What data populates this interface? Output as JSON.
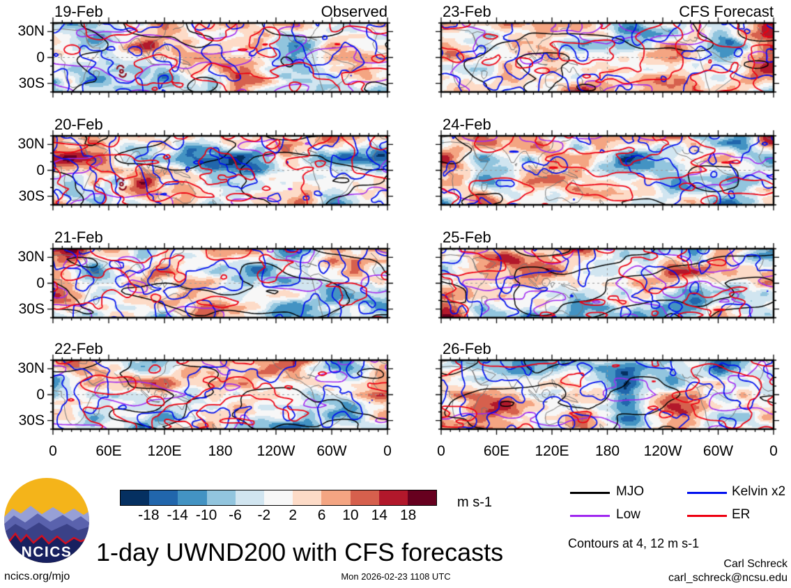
{
  "meta": {
    "site": "ncics.org/mjo",
    "timestamp": "Mon 2026-02-23 1108 UTC",
    "author": "Carl Schreck",
    "email": "carl_schreck@ncsu.edu",
    "logo_text": "NCICS"
  },
  "chart_data": {
    "type": "heatmap",
    "title": "1-day UWND200 with CFS forecasts",
    "contours_note": "Contours at 4, 12 m s-1",
    "columns": [
      {
        "heading": "Observed",
        "panels": [
          {
            "label": "19-Feb",
            "storm": true
          },
          {
            "label": "20-Feb",
            "storm": true
          },
          {
            "label": "21-Feb",
            "storm": false
          },
          {
            "label": "22-Feb",
            "storm": false
          }
        ]
      },
      {
        "heading": "CFS Forecast",
        "panels": [
          {
            "label": "23-Feb",
            "storm": false
          },
          {
            "label": "24-Feb",
            "storm": false
          },
          {
            "label": "25-Feb",
            "storm": false
          },
          {
            "label": "26-Feb",
            "storm": false
          }
        ]
      }
    ],
    "x_ticks": [
      "0",
      "60E",
      "120E",
      "180",
      "120W",
      "60W",
      "0"
    ],
    "y_ticks": [
      "30N",
      "0",
      "30S"
    ],
    "colorbar": {
      "levels": [
        -18,
        -14,
        -10,
        -6,
        -2,
        2,
        6,
        10,
        14,
        18
      ],
      "colors": [
        "#053061",
        "#2166ac",
        "#4393c3",
        "#92c5de",
        "#d1e5f0",
        "#f7f7f7",
        "#fddbc7",
        "#f4a582",
        "#d6604d",
        "#b2182b",
        "#67001f"
      ],
      "units_label": "m s-1"
    },
    "legend": [
      {
        "label": "MJO",
        "color": "#000000"
      },
      {
        "label": "Kelvin x2",
        "color": "#0010ee"
      },
      {
        "label": "Low",
        "color": "#a028f0"
      },
      {
        "label": "ER",
        "color": "#ee0011"
      }
    ]
  }
}
